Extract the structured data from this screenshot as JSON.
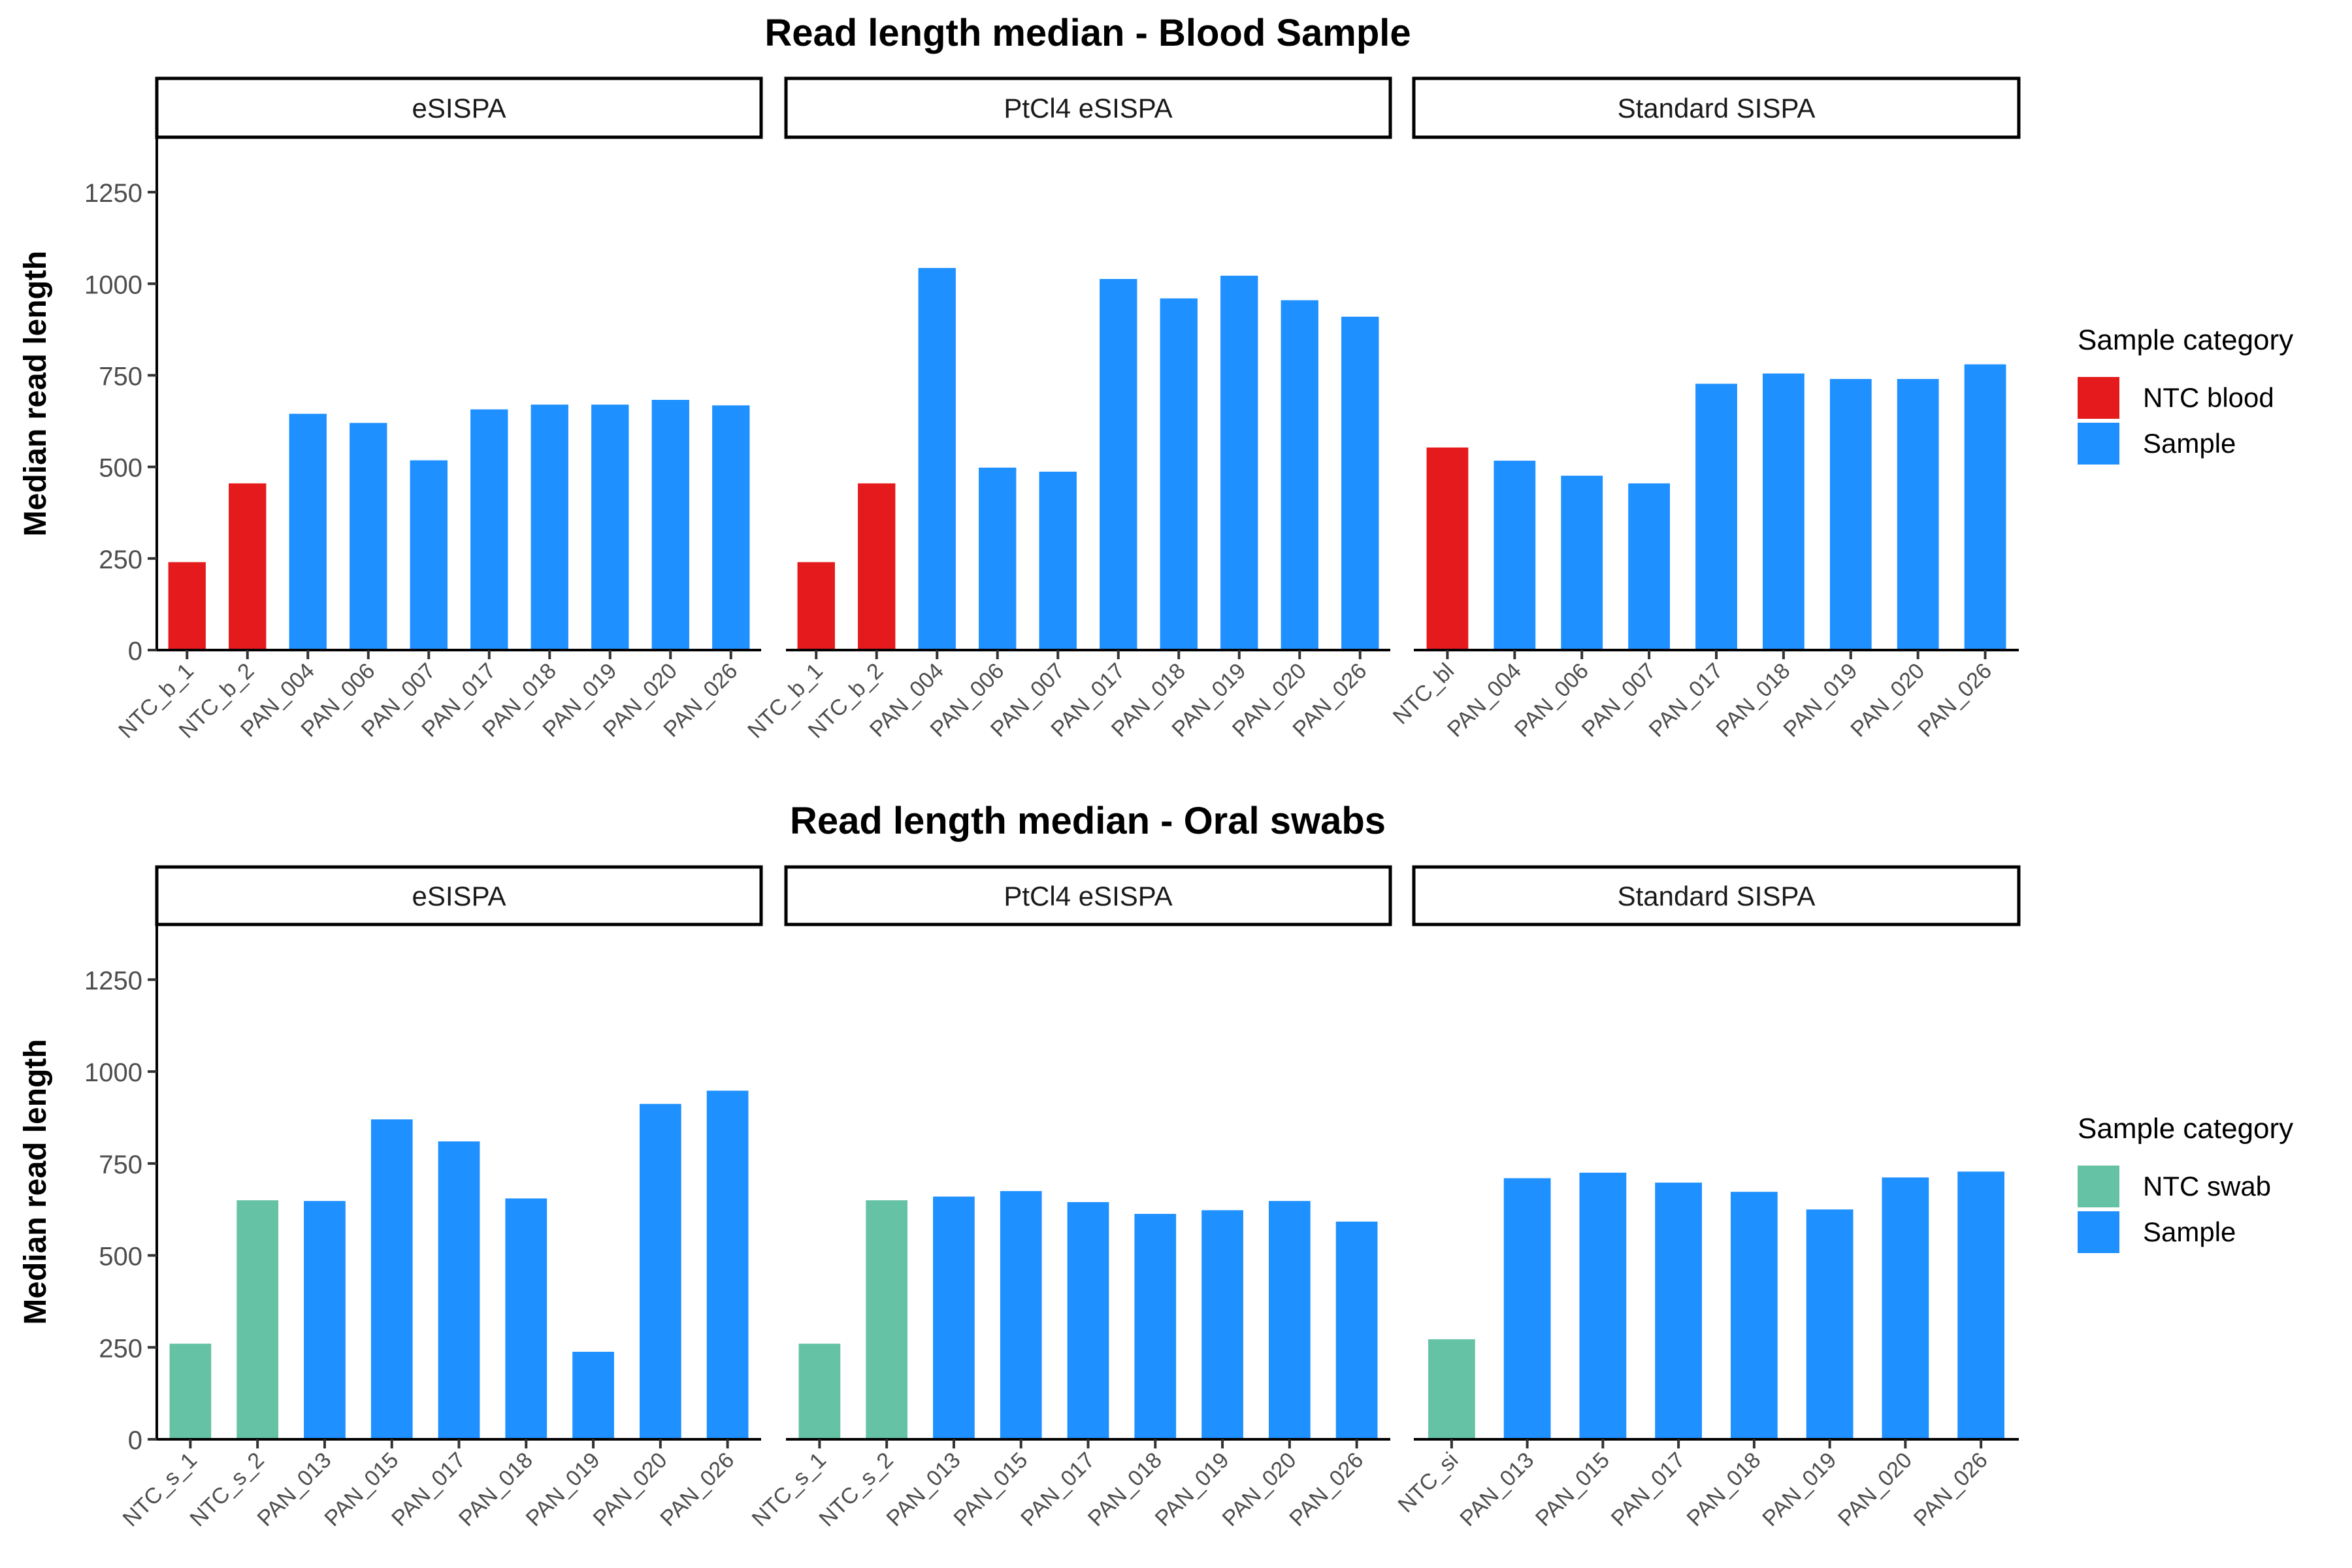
{
  "figure": {
    "ylabel": "Median read length",
    "legend_title": "Sample category"
  },
  "colors": {
    "ntc_blood": "#E41A1C",
    "ntc_swab": "#66C2A5",
    "sample": "#1E90FF"
  },
  "yaxis": {
    "ylim": [
      0,
      1400
    ],
    "ticks": [
      0,
      250,
      500,
      750,
      1000,
      1250
    ],
    "tick_labels": [
      "0",
      "250",
      "500",
      "750",
      "1000",
      "1250"
    ]
  },
  "chart_data": [
    {
      "type": "bar",
      "title": "Read length median - Blood Sample",
      "ylabel": "Median read length",
      "legend": {
        "title": "Sample category",
        "entries": [
          {
            "label": "NTC blood",
            "color": "#E41A1C"
          },
          {
            "label": "Sample",
            "color": "#1E90FF"
          }
        ]
      },
      "facets": [
        {
          "label": "eSISPA",
          "categories": [
            "NTC_b_1",
            "NTC_b_2",
            "PAN_004",
            "PAN_006",
            "PAN_007",
            "PAN_017",
            "PAN_018",
            "PAN_019",
            "PAN_020",
            "PAN_026"
          ],
          "values": [
            240,
            455,
            645,
            620,
            518,
            657,
            670,
            670,
            683,
            668
          ],
          "groups": [
            "NTC blood",
            "NTC blood",
            "Sample",
            "Sample",
            "Sample",
            "Sample",
            "Sample",
            "Sample",
            "Sample",
            "Sample"
          ]
        },
        {
          "label": "PtCl4 eSISPA",
          "categories": [
            "NTC_b_1",
            "NTC_b_2",
            "PAN_004",
            "PAN_006",
            "PAN_007",
            "PAN_017",
            "PAN_018",
            "PAN_019",
            "PAN_020",
            "PAN_026"
          ],
          "values": [
            240,
            455,
            1043,
            498,
            487,
            1013,
            960,
            1022,
            955,
            910
          ],
          "groups": [
            "NTC blood",
            "NTC blood",
            "Sample",
            "Sample",
            "Sample",
            "Sample",
            "Sample",
            "Sample",
            "Sample",
            "Sample"
          ]
        },
        {
          "label": "Standard SISPA",
          "categories": [
            "NTC_bl",
            "PAN_004",
            "PAN_006",
            "PAN_007",
            "PAN_017",
            "PAN_018",
            "PAN_019",
            "PAN_020",
            "PAN_026"
          ],
          "values": [
            553,
            517,
            476,
            455,
            727,
            755,
            740,
            740,
            780
          ],
          "groups": [
            "NTC blood",
            "Sample",
            "Sample",
            "Sample",
            "Sample",
            "Sample",
            "Sample",
            "Sample",
            "Sample"
          ]
        }
      ]
    },
    {
      "type": "bar",
      "title": "Read length median - Oral swabs",
      "ylabel": "Median read length",
      "legend": {
        "title": "Sample category",
        "entries": [
          {
            "label": "NTC swab",
            "color": "#66C2A5"
          },
          {
            "label": "Sample",
            "color": "#1E90FF"
          }
        ]
      },
      "facets": [
        {
          "label": "eSISPA",
          "categories": [
            "NTC_s_1",
            "NTC_s_2",
            "PAN_013",
            "PAN_015",
            "PAN_017",
            "PAN_018",
            "PAN_019",
            "PAN_020",
            "PAN_026"
          ],
          "values": [
            260,
            650,
            648,
            870,
            810,
            655,
            238,
            912,
            948
          ],
          "groups": [
            "NTC swab",
            "NTC swab",
            "Sample",
            "Sample",
            "Sample",
            "Sample",
            "Sample",
            "Sample",
            "Sample"
          ]
        },
        {
          "label": "PtCl4 eSISPA",
          "categories": [
            "NTC_s_1",
            "NTC_s_2",
            "PAN_013",
            "PAN_015",
            "PAN_017",
            "PAN_018",
            "PAN_019",
            "PAN_020",
            "PAN_026"
          ],
          "values": [
            260,
            650,
            660,
            675,
            645,
            613,
            623,
            648,
            592
          ],
          "groups": [
            "NTC swab",
            "NTC swab",
            "Sample",
            "Sample",
            "Sample",
            "Sample",
            "Sample",
            "Sample",
            "Sample"
          ]
        },
        {
          "label": "Standard SISPA",
          "categories": [
            "NTC_si",
            "PAN_013",
            "PAN_015",
            "PAN_017",
            "PAN_018",
            "PAN_019",
            "PAN_020",
            "PAN_026"
          ],
          "values": [
            272,
            710,
            725,
            698,
            673,
            625,
            712,
            728
          ],
          "groups": [
            "NTC swab",
            "Sample",
            "Sample",
            "Sample",
            "Sample",
            "Sample",
            "Sample",
            "Sample"
          ]
        }
      ]
    }
  ]
}
